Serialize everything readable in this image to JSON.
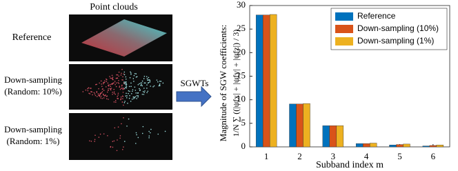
{
  "panel": {
    "title": "Point clouds",
    "arrow_label": "SGWTs",
    "clouds": [
      {
        "label": [
          "Reference"
        ]
      },
      {
        "label": [
          "Down-sampling",
          "(Random: 10%)"
        ]
      },
      {
        "label": [
          "Down-sampling",
          "(Random: 1%)"
        ]
      }
    ]
  },
  "chart_data": {
    "type": "bar",
    "ylabel": "Magnitude of SGW coefficients:",
    "ylabel_formula": "1/N ∑ ((|ψfx| + |ψfy| + |ψfz|) / 3)",
    "xlabel": "Subband index m",
    "categories": [
      "1",
      "2",
      "3",
      "4",
      "5",
      "6"
    ],
    "series": [
      {
        "name": "Reference",
        "color": "#0072bd",
        "values": [
          28,
          9.1,
          4.5,
          0.7,
          0.4,
          0.2
        ]
      },
      {
        "name": "Down-sampling (10%)",
        "color": "#d95319",
        "values": [
          28,
          9.1,
          4.5,
          0.7,
          0.5,
          0.3
        ]
      },
      {
        "name": "Down-sampling (1%)",
        "color": "#edb120",
        "values": [
          28.1,
          9.2,
          4.5,
          0.8,
          0.6,
          0.4
        ]
      }
    ],
    "ylim": [
      0,
      30
    ],
    "yticks": [
      0,
      5,
      10,
      15,
      20,
      25,
      30
    ],
    "legend": "upper right"
  }
}
